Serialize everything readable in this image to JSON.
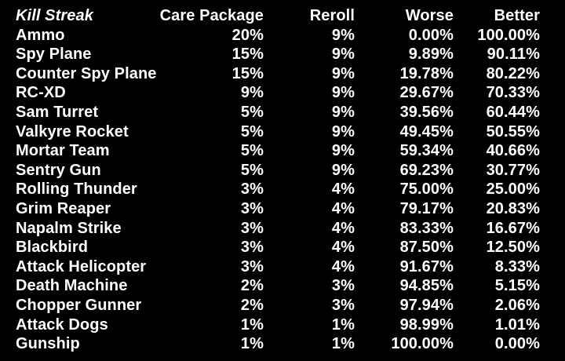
{
  "table": {
    "headers": {
      "kill_streak": "Kill Streak",
      "care_package": "Care Package",
      "reroll": "Reroll",
      "worse": "Worse",
      "better": "Better"
    },
    "rows": [
      {
        "name": "Ammo",
        "care_package": "20%",
        "reroll": "9%",
        "worse": "0.00%",
        "better": "100.00%"
      },
      {
        "name": "Spy Plane",
        "care_package": "15%",
        "reroll": "9%",
        "worse": "9.89%",
        "better": "90.11%"
      },
      {
        "name": "Counter Spy Plane",
        "care_package": "15%",
        "reroll": "9%",
        "worse": "19.78%",
        "better": "80.22%"
      },
      {
        "name": "RC-XD",
        "care_package": "9%",
        "reroll": "9%",
        "worse": "29.67%",
        "better": "70.33%"
      },
      {
        "name": "Sam Turret",
        "care_package": "5%",
        "reroll": "9%",
        "worse": "39.56%",
        "better": "60.44%"
      },
      {
        "name": "Valkyre Rocket",
        "care_package": "5%",
        "reroll": "9%",
        "worse": "49.45%",
        "better": "50.55%"
      },
      {
        "name": "Mortar Team",
        "care_package": "5%",
        "reroll": "9%",
        "worse": "59.34%",
        "better": "40.66%"
      },
      {
        "name": "Sentry Gun",
        "care_package": "5%",
        "reroll": "9%",
        "worse": "69.23%",
        "better": "30.77%"
      },
      {
        "name": "Rolling Thunder",
        "care_package": "3%",
        "reroll": "4%",
        "worse": "75.00%",
        "better": "25.00%"
      },
      {
        "name": "Grim Reaper",
        "care_package": "3%",
        "reroll": "4%",
        "worse": "79.17%",
        "better": "20.83%"
      },
      {
        "name": "Napalm Strike",
        "care_package": "3%",
        "reroll": "4%",
        "worse": "83.33%",
        "better": "16.67%"
      },
      {
        "name": "Blackbird",
        "care_package": "3%",
        "reroll": "4%",
        "worse": "87.50%",
        "better": "12.50%"
      },
      {
        "name": "Attack Helicopter",
        "care_package": "3%",
        "reroll": "4%",
        "worse": "91.67%",
        "better": "8.33%"
      },
      {
        "name": "Death Machine",
        "care_package": "2%",
        "reroll": "3%",
        "worse": "94.85%",
        "better": "5.15%"
      },
      {
        "name": "Chopper Gunner",
        "care_package": "2%",
        "reroll": "3%",
        "worse": "97.94%",
        "better": "2.06%"
      },
      {
        "name": "Attack Dogs",
        "care_package": "1%",
        "reroll": "1%",
        "worse": "98.99%",
        "better": "1.01%"
      },
      {
        "name": "Gunship",
        "care_package": "1%",
        "reroll": "1%",
        "worse": "100.00%",
        "better": "0.00%"
      }
    ]
  }
}
